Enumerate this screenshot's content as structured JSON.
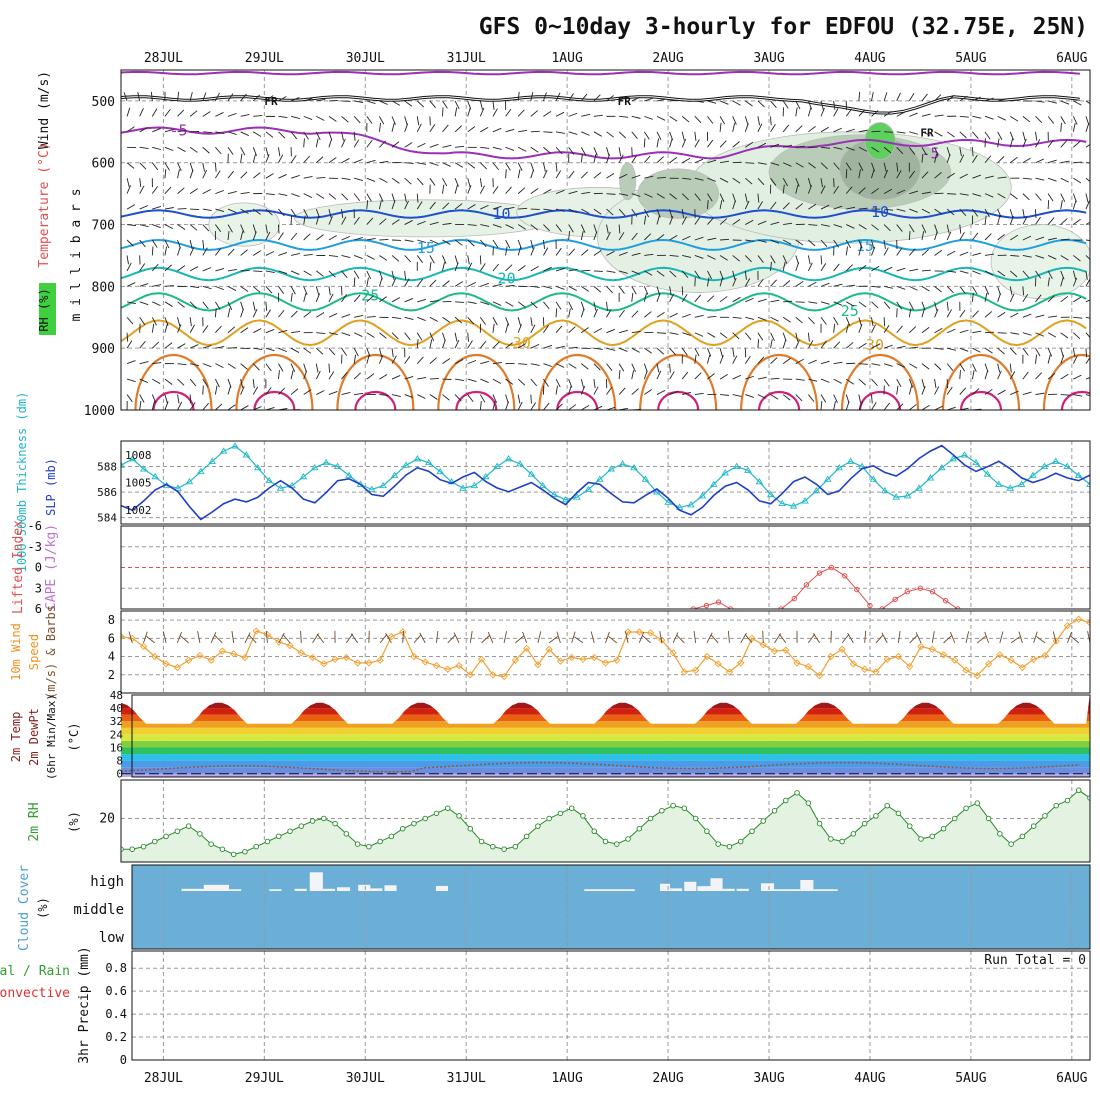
{
  "chart_data": {
    "title": "GFS 0~10day 3-hourly for EDFOU (32.75E, 25N)",
    "type": "meteogram",
    "time_axis": {
      "day_labels": [
        "28JUL",
        "29JUL",
        "30JUL",
        "31JUL",
        "1AUG",
        "2AUG",
        "3AUG",
        "4AUG",
        "5AUG",
        "6AUG"
      ],
      "range_days": [
        -0.42,
        9.18
      ]
    },
    "upper_air": {
      "ylabels": [
        "Wind (m/s)",
        "Temperature (°C)",
        "RH (%)",
        "m i l l i b a r s"
      ],
      "pressure_ticks": [
        500,
        600,
        700,
        800,
        900,
        1000
      ],
      "pressure_range": [
        450,
        1000
      ],
      "isotherms": [
        {
          "label": "-5",
          "color": "#9b2fb6",
          "base_p": 548,
          "amp": 5,
          "label_pos": [
            [
              0.15,
              548
            ],
            [
              7.6,
              585
            ]
          ]
        },
        {
          "label": "10",
          "color": "#1f4fd1",
          "base_p": 683,
          "amp": 6,
          "label_pos": [
            [
              3.35,
              683
            ],
            [
              7.1,
              680
            ]
          ]
        },
        {
          "label": "15",
          "color": "#1f9ee0",
          "base_p": 733,
          "amp": 8,
          "label_pos": [
            [
              2.6,
              738
            ],
            [
              6.95,
              735
            ]
          ]
        },
        {
          "label": "20",
          "color": "#18b7b4",
          "base_p": 780,
          "amp": 10,
          "label_pos": [
            [
              3.4,
              787
            ],
            [
              9.3,
              768
            ]
          ]
        },
        {
          "label": "25",
          "color": "#1cb98a",
          "base_p": 825,
          "amp": 14,
          "label_pos": [
            [
              2.05,
              815
            ],
            [
              6.8,
              840
            ]
          ]
        },
        {
          "label": "30",
          "color": "#e0a020",
          "base_p": 875,
          "amp": 20,
          "label_pos": [
            [
              3.55,
              892
            ],
            [
              7.05,
              895
            ]
          ]
        }
      ],
      "freezing_level_label": "FR",
      "freezing_level_p": 496
    },
    "thickness_slp": {
      "ylabel_left": "1000-500mb Thickness (dm)",
      "ylabel_right": "SLP (mb)",
      "thickness_ticks": [
        584,
        586,
        588
      ],
      "slp_ticks": [
        1002,
        1005,
        1008
      ],
      "thickness_values": [
        588.1,
        588.6,
        587.8,
        587.2,
        586.5,
        586.3,
        586.8,
        587.6,
        588.4,
        589.2,
        589.6,
        588.9,
        587.9,
        586.9,
        586.3,
        586.5,
        587.2,
        587.9,
        588.3,
        588.0,
        587.3,
        586.6,
        586.2,
        586.5,
        587.3,
        588.1,
        588.6,
        588.3,
        587.6,
        586.8,
        586.3,
        586.5,
        587.2,
        588.0,
        588.6,
        588.2,
        587.4,
        586.5,
        585.8,
        585.4,
        585.6,
        586.2,
        587.0,
        587.8,
        588.2,
        587.9,
        587.0,
        586.0,
        585.2,
        584.8,
        585.0,
        585.7,
        586.6,
        587.5,
        588.0,
        587.7,
        586.8,
        585.8,
        585.1,
        584.9,
        585.3,
        586.1,
        587.0,
        587.9,
        588.4,
        588.0,
        587.0,
        586.1,
        585.6,
        585.7,
        586.3,
        587.1,
        587.9,
        588.6,
        588.9,
        588.3,
        587.4,
        586.6,
        586.3,
        586.6,
        587.3,
        588.0,
        588.4,
        588.0,
        587.3,
        586.6
      ],
      "slp_values": [
        1002.5,
        1002.0,
        1003.0,
        1004.2,
        1004.8,
        1004.0,
        1002.4,
        1001.0,
        1001.8,
        1002.7,
        1003.2,
        1002.9,
        1003.4,
        1004.4,
        1005.2,
        1004.4,
        1003.2,
        1002.8,
        1003.9,
        1005.2,
        1005.4,
        1004.8,
        1003.7,
        1003.5,
        1004.6,
        1005.8,
        1006.6,
        1006.2,
        1005.3,
        1004.9,
        1005.6,
        1006.1,
        1005.1,
        1004.4,
        1004.0,
        1004.5,
        1005.0,
        1004.2,
        1003.3,
        1002.6,
        1003.9,
        1005.0,
        1004.8,
        1003.8,
        1002.9,
        1002.8,
        1003.6,
        1004.3,
        1003.3,
        1002.0,
        1001.5,
        1002.3,
        1003.6,
        1004.6,
        1005.0,
        1004.2,
        1003.0,
        1002.7,
        1003.8,
        1005.1,
        1005.6,
        1004.8,
        1003.7,
        1004.1,
        1005.4,
        1006.5,
        1006.8,
        1006.1,
        1005.7,
        1006.5,
        1007.6,
        1008.4,
        1009.0,
        1008.0,
        1006.9,
        1006.2,
        1006.7,
        1007.3,
        1006.5,
        1005.5,
        1005.0,
        1005.4,
        1006.0,
        1005.5,
        1005.2,
        1005.8
      ]
    },
    "lifted_index_cape": {
      "ylabel_left": "Lifted Index",
      "ylabel_right": "CAPE (J/kg)",
      "li_ticks": [
        -6,
        -3,
        0,
        3,
        6
      ],
      "li_segments": [
        {
          "x": [
            5.25,
            5.38,
            5.5,
            5.62
          ],
          "y": [
            6.0,
            5.5,
            5.0,
            6.0
          ]
        },
        {
          "x": [
            6.12,
            6.25,
            6.37,
            6.5,
            6.62,
            6.75,
            6.87,
            7.0
          ],
          "y": [
            6.0,
            4.5,
            2.5,
            0.8,
            0.0,
            1.2,
            3.2,
            5.5
          ]
        },
        {
          "x": [
            7.12,
            7.25,
            7.37,
            7.5,
            7.62,
            7.75,
            7.87
          ],
          "y": [
            6.0,
            4.6,
            3.5,
            3.0,
            3.5,
            4.8,
            6.0
          ]
        }
      ]
    },
    "wind10m": {
      "ylabel": "10m Wind Speed (m/s) & Barbs",
      "yticks": [
        2,
        4,
        6,
        8
      ],
      "values": [
        6.2,
        6.0,
        5.1,
        4.0,
        3.2,
        2.8,
        3.6,
        4.1,
        3.6,
        4.6,
        4.3,
        3.9,
        6.8,
        6.4,
        5.6,
        5.2,
        4.4,
        3.9,
        3.2,
        3.7,
        3.9,
        3.3,
        3.3,
        3.6,
        6.2,
        6.7,
        4.0,
        3.4,
        3.0,
        2.6,
        3.0,
        2.0,
        3.7,
        2.0,
        1.8,
        3.6,
        4.9,
        3.1,
        4.8,
        3.5,
        3.9,
        3.7,
        3.9,
        3.3,
        3.6,
        6.7,
        6.7,
        6.6,
        5.8,
        4.4,
        2.3,
        2.5,
        4.0,
        3.2,
        2.3,
        3.3,
        6.0,
        5.3,
        4.6,
        4.7,
        3.3,
        2.9,
        1.9,
        4.0,
        4.8,
        3.2,
        2.6,
        2.3,
        3.7,
        4.0,
        2.9,
        5.1,
        4.8,
        4.2,
        3.6,
        2.5,
        1.9,
        3.2,
        4.2,
        3.6,
        2.8,
        3.7,
        4.1,
        5.7,
        7.4,
        8.1,
        7.7
      ]
    },
    "temp2m": {
      "ylabel": "2m Temp 2m DewPt (6hr Min/Max) (°C)",
      "yticks": [
        0,
        8,
        16,
        24,
        32,
        40,
        48
      ],
      "min_temp": 30.5,
      "max_temp": 43.5,
      "dewpoint_mean": 3.0
    },
    "rh2m": {
      "ylabel": "2m RH (%)",
      "yticks": [
        20
      ],
      "values": [
        8,
        8,
        9,
        11,
        13,
        15,
        17,
        14,
        10,
        8,
        6,
        7,
        9,
        11,
        13,
        15,
        17,
        19,
        20,
        18,
        14,
        10,
        9,
        11,
        13,
        16,
        18,
        20,
        22,
        24,
        21,
        16,
        11,
        9,
        8,
        9,
        13,
        17,
        20,
        22,
        24,
        21,
        15,
        11,
        10,
        12,
        16,
        20,
        23,
        25,
        24,
        20,
        15,
        10,
        9,
        11,
        15,
        19,
        23,
        27,
        30,
        26,
        18,
        12,
        11,
        14,
        18,
        21,
        25,
        22,
        17,
        12,
        13,
        16,
        20,
        24,
        26,
        20,
        14,
        10,
        13,
        17,
        21,
        25,
        27,
        31,
        28
      ]
    },
    "cloud_cover": {
      "ylabel": "Cloud Cover (%)",
      "levels": [
        "high",
        "middle",
        "low"
      ],
      "high_bars": [
        {
          "x": 0.18,
          "w": 0.22,
          "h": 0.1
        },
        {
          "x": 0.4,
          "w": 0.25,
          "h": 0.28
        },
        {
          "x": 0.65,
          "w": 0.12,
          "h": 0.08
        },
        {
          "x": 1.05,
          "w": 0.12,
          "h": 0.08
        },
        {
          "x": 1.3,
          "w": 0.12,
          "h": 0.1
        },
        {
          "x": 1.45,
          "w": 0.13,
          "h": 0.85
        },
        {
          "x": 1.58,
          "w": 0.12,
          "h": 0.1
        },
        {
          "x": 1.72,
          "w": 0.13,
          "h": 0.17
        },
        {
          "x": 1.93,
          "w": 0.12,
          "h": 0.28
        },
        {
          "x": 2.05,
          "w": 0.12,
          "h": 0.12
        },
        {
          "x": 2.19,
          "w": 0.12,
          "h": 0.26
        },
        {
          "x": 2.7,
          "w": 0.12,
          "h": 0.23
        },
        {
          "x": 4.17,
          "w": 0.5,
          "h": 0.08
        },
        {
          "x": 4.92,
          "w": 0.1,
          "h": 0.33
        },
        {
          "x": 5.02,
          "w": 0.12,
          "h": 0.12
        },
        {
          "x": 5.16,
          "w": 0.12,
          "h": 0.42
        },
        {
          "x": 5.29,
          "w": 0.13,
          "h": 0.22
        },
        {
          "x": 5.42,
          "w": 0.12,
          "h": 0.58
        },
        {
          "x": 5.54,
          "w": 0.12,
          "h": 0.1
        },
        {
          "x": 5.68,
          "w": 0.12,
          "h": 0.1
        },
        {
          "x": 5.92,
          "w": 0.13,
          "h": 0.35
        },
        {
          "x": 6.05,
          "w": 0.26,
          "h": 0.08
        },
        {
          "x": 6.31,
          "w": 0.13,
          "h": 0.5
        },
        {
          "x": 6.44,
          "w": 0.24,
          "h": 0.08
        }
      ]
    },
    "precip": {
      "ylabel": "3hr Precip (mm)",
      "legend_left": [
        "Total / Rain",
        "Convective"
      ],
      "yticks": [
        0,
        0.2,
        0.4,
        0.6,
        0.8
      ],
      "run_total_label": "Run Total = 0"
    }
  }
}
